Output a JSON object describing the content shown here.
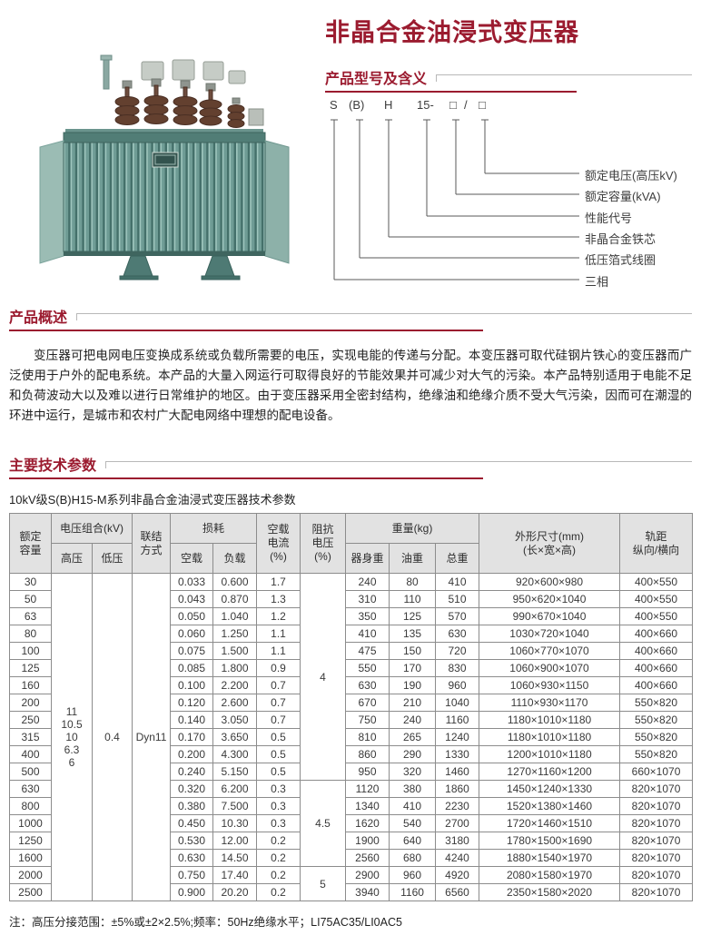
{
  "colors": {
    "accent_red": "#9b1b2f",
    "table_header_bg": "#e2e2e2",
    "table_border": "#8c8c8c"
  },
  "title": "非晶合金油浸式变压器",
  "model": {
    "heading": "产品型号及含义",
    "code_parts": [
      "S",
      "(B)",
      "H",
      "15-",
      "□",
      "/",
      "□"
    ],
    "labels": [
      "额定电压(高压kV)",
      "额定容量(kVA)",
      "性能代号",
      "非晶合金铁芯",
      "低压箔式线圈",
      "三相"
    ]
  },
  "overview": {
    "heading": "产品概述",
    "body": "变压器可把电网电压变换成系统或负载所需要的电压，实现电能的传递与分配。本变压器可取代硅钢片铁心的变压器而广泛使用于户外的配电系统。本产品的大量入网运行可取得良好的节能效果并可减少对大气的污染。本产品特别适用于电能不足和负荷波动大以及难以进行日常维护的地区。由于变压器采用全密封结构，绝缘油和绝缘介质不受大气污染，因而可在潮湿的环进中运行，是城市和农村广大配电网络中理想的配电设备。"
  },
  "params": {
    "heading": "主要技术参数",
    "caption": "10kV级S(B)H15-M系列非晶合金油浸式变压器技术参数",
    "note": "注：高压分接范围：±5%或±2×2.5%;频率：50Hz绝缘水平；LI75AC35/LI0AC5",
    "table": {
      "header": {
        "capacity": "额定\n容量",
        "voltage_combo": "电压组合(kV)",
        "hv": "高压",
        "lv": "低压",
        "connection": "联结\n方式",
        "loss": "损耗",
        "no_load": "空载",
        "load": "负载",
        "no_load_current": "空载\n电流\n(%)",
        "impedance": "阻抗\n电压\n(%)",
        "weight": "重量(kg)",
        "body_weight": "器身重",
        "oil_weight": "油重",
        "total_weight": "总重",
        "dimensions": "外形尺寸(mm)\n(长×宽×高)",
        "gauge": "轨距\n纵向/横向"
      },
      "merged": {
        "hv": {
          "start": 0,
          "span": 19,
          "value": "11\n10.5\n10\n6.3\n6"
        },
        "lv": {
          "start": 0,
          "span": 19,
          "value": "0.4"
        },
        "connection": {
          "start": 0,
          "span": 19,
          "value": "Dyn11"
        },
        "impedance": [
          {
            "start": 0,
            "span": 12,
            "value": "4"
          },
          {
            "start": 12,
            "span": 5,
            "value": "4.5"
          },
          {
            "start": 17,
            "span": 2,
            "value": "5"
          }
        ]
      },
      "rows": [
        [
          "30",
          "0.033",
          "0.600",
          "1.7",
          "240",
          "80",
          "410",
          "920×600×980",
          "400×550"
        ],
        [
          "50",
          "0.043",
          "0.870",
          "1.3",
          "310",
          "110",
          "510",
          "950×620×1040",
          "400×550"
        ],
        [
          "63",
          "0.050",
          "1.040",
          "1.2",
          "350",
          "125",
          "570",
          "990×670×1040",
          "400×550"
        ],
        [
          "80",
          "0.060",
          "1.250",
          "1.1",
          "410",
          "135",
          "630",
          "1030×720×1040",
          "400×660"
        ],
        [
          "100",
          "0.075",
          "1.500",
          "1.1",
          "475",
          "150",
          "720",
          "1060×770×1070",
          "400×660"
        ],
        [
          "125",
          "0.085",
          "1.800",
          "0.9",
          "550",
          "170",
          "830",
          "1060×900×1070",
          "400×660"
        ],
        [
          "160",
          "0.100",
          "2.200",
          "0.7",
          "630",
          "190",
          "960",
          "1060×930×1150",
          "400×660"
        ],
        [
          "200",
          "0.120",
          "2.600",
          "0.7",
          "670",
          "210",
          "1040",
          "1110×930×1170",
          "550×820"
        ],
        [
          "250",
          "0.140",
          "3.050",
          "0.7",
          "750",
          "240",
          "1160",
          "1180×1010×1180",
          "550×820"
        ],
        [
          "315",
          "0.170",
          "3.650",
          "0.5",
          "810",
          "265",
          "1240",
          "1180×1010×1180",
          "550×820"
        ],
        [
          "400",
          "0.200",
          "4.300",
          "0.5",
          "860",
          "290",
          "1330",
          "1200×1010×1180",
          "550×820"
        ],
        [
          "500",
          "0.240",
          "5.150",
          "0.5",
          "950",
          "320",
          "1460",
          "1270×1160×1200",
          "660×1070"
        ],
        [
          "630",
          "0.320",
          "6.200",
          "0.3",
          "1120",
          "380",
          "1860",
          "1450×1240×1330",
          "820×1070"
        ],
        [
          "800",
          "0.380",
          "7.500",
          "0.3",
          "1340",
          "410",
          "2230",
          "1520×1380×1460",
          "820×1070"
        ],
        [
          "1000",
          "0.450",
          "10.30",
          "0.3",
          "1620",
          "540",
          "2700",
          "1720×1460×1510",
          "820×1070"
        ],
        [
          "1250",
          "0.530",
          "12.00",
          "0.2",
          "1900",
          "640",
          "3180",
          "1780×1500×1690",
          "820×1070"
        ],
        [
          "1600",
          "0.630",
          "14.50",
          "0.2",
          "2560",
          "680",
          "4240",
          "1880×1540×1970",
          "820×1070"
        ],
        [
          "2000",
          "0.750",
          "17.40",
          "0.2",
          "2900",
          "960",
          "4920",
          "2080×1580×1970",
          "820×1070"
        ],
        [
          "2500",
          "0.900",
          "20.20",
          "0.2",
          "3940",
          "1160",
          "6560",
          "2350×1580×2020",
          "820×1070"
        ]
      ]
    }
  }
}
